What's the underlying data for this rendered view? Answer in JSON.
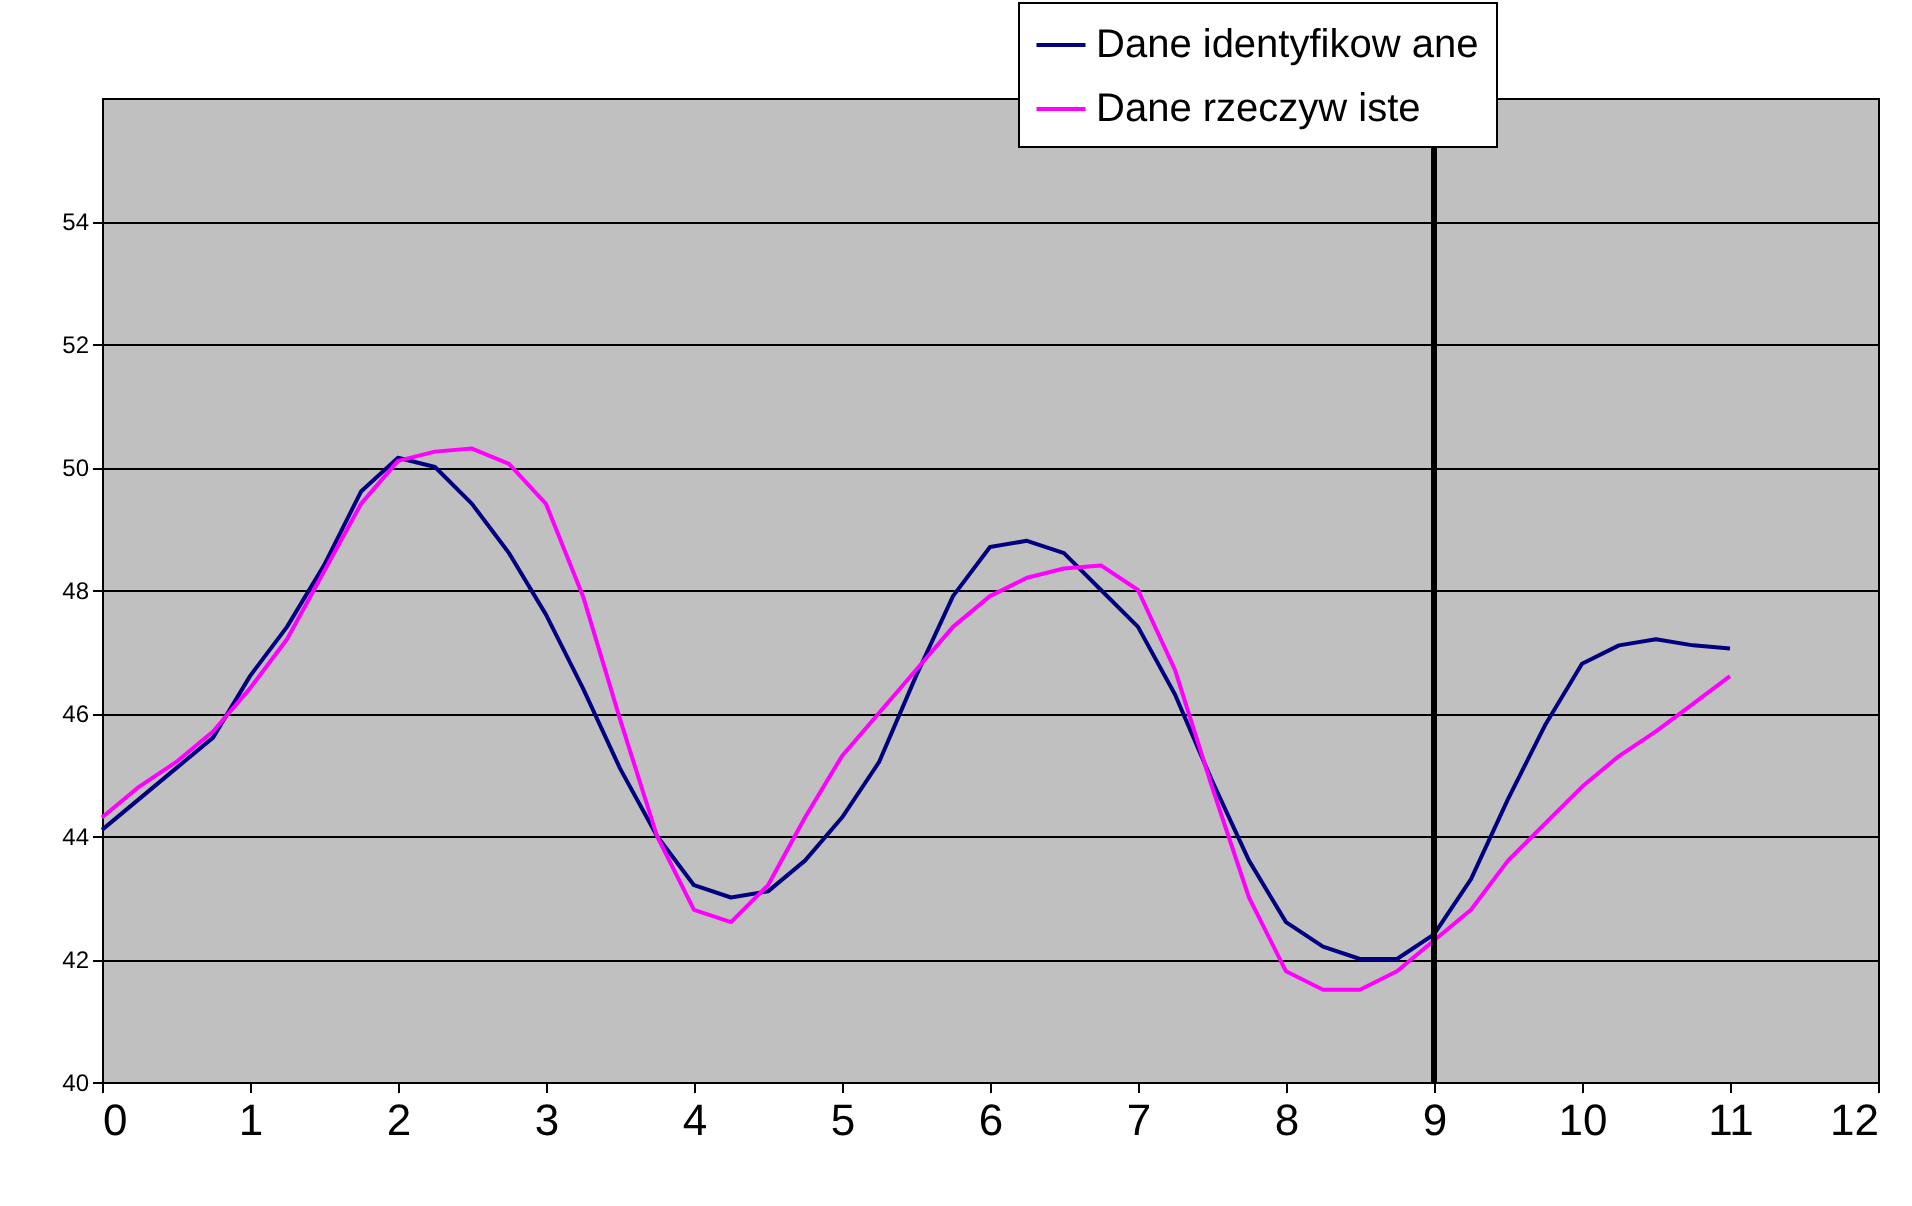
{
  "chart_data": {
    "type": "line",
    "x": [
      0,
      0.25,
      0.5,
      0.75,
      1,
      1.25,
      1.5,
      1.75,
      2,
      2.25,
      2.5,
      2.75,
      3,
      3.25,
      3.5,
      3.75,
      4,
      4.25,
      4.5,
      4.75,
      5,
      5.25,
      5.5,
      5.75,
      6,
      6.25,
      6.5,
      6.75,
      7,
      7.25,
      7.5,
      7.75,
      8,
      8.25,
      8.5,
      8.75,
      9,
      9.25,
      9.5,
      9.75,
      10,
      10.25,
      10.5,
      10.75,
      11
    ],
    "series": [
      {
        "name": "Dane identyfikow ane",
        "color": "#000080",
        "values": [
          44.1,
          44.6,
          45.1,
          45.6,
          46.6,
          47.4,
          48.4,
          49.6,
          50.15,
          50.0,
          49.4,
          48.6,
          47.6,
          46.4,
          45.1,
          44.0,
          43.2,
          43.0,
          43.1,
          43.6,
          44.3,
          45.2,
          46.6,
          47.9,
          48.7,
          48.8,
          48.6,
          48.0,
          47.4,
          46.3,
          44.9,
          43.6,
          42.6,
          42.2,
          42.0,
          42.0,
          42.4,
          43.3,
          44.6,
          45.8,
          46.8,
          47.1,
          47.2,
          47.1,
          47.05
        ]
      },
      {
        "name": "Dane rzeczyw iste",
        "color": "#ff00ff",
        "values": [
          44.3,
          44.8,
          45.2,
          45.7,
          46.4,
          47.2,
          48.3,
          49.4,
          50.1,
          50.25,
          50.3,
          50.05,
          49.4,
          47.9,
          45.9,
          44.0,
          42.8,
          42.6,
          43.2,
          44.3,
          45.3,
          46.0,
          46.7,
          47.4,
          47.9,
          48.2,
          48.35,
          48.4,
          48.0,
          46.7,
          44.8,
          43.0,
          41.8,
          41.5,
          41.5,
          41.8,
          42.3,
          42.8,
          43.6,
          44.2,
          44.8,
          45.3,
          45.7,
          46.15,
          46.6
        ]
      }
    ],
    "xlim": [
      0,
      12
    ],
    "xticks": [
      0,
      1,
      2,
      3,
      4,
      5,
      6,
      7,
      8,
      9,
      10,
      11,
      12
    ],
    "ylim": [
      40,
      56
    ],
    "yticks": [
      40,
      42,
      44,
      46,
      48,
      50,
      52,
      54
    ],
    "grid": "y",
    "legend": "top right",
    "marker": "none",
    "line_style": "solid",
    "ref_lines": [
      {
        "axis": "x",
        "value": 9,
        "color": "#000000"
      }
    ]
  }
}
